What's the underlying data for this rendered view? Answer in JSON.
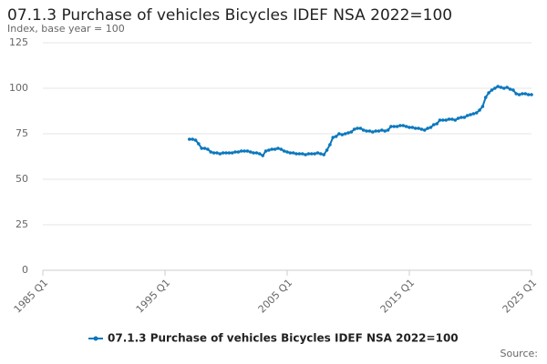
{
  "chart_data": {
    "type": "line",
    "title": "07.1.3 Purchase of vehicles Bicycles IDEF NSA 2022=100",
    "subtitle": "Index, base year = 100",
    "source": "Source:",
    "x": [
      1997,
      1997.25,
      1997.5,
      1997.75,
      1998,
      1998.25,
      1998.5,
      1998.75,
      1999,
      1999.25,
      1999.5,
      1999.75,
      2000,
      2000.25,
      2000.5,
      2000.75,
      2001,
      2001.25,
      2001.5,
      2001.75,
      2002,
      2002.25,
      2002.5,
      2002.75,
      2003,
      2003.25,
      2003.5,
      2003.75,
      2004,
      2004.25,
      2004.5,
      2004.75,
      2005,
      2005.25,
      2005.5,
      2005.75,
      2006,
      2006.25,
      2006.5,
      2006.75,
      2007,
      2007.25,
      2007.5,
      2007.75,
      2008,
      2008.25,
      2008.5,
      2008.75,
      2009,
      2009.25,
      2009.5,
      2009.75,
      2010,
      2010.25,
      2010.5,
      2010.75,
      2011,
      2011.25,
      2011.5,
      2011.75,
      2012,
      2012.25,
      2012.5,
      2012.75,
      2013,
      2013.25,
      2013.5,
      2013.75,
      2014,
      2014.25,
      2014.5,
      2014.75,
      2015,
      2015.25,
      2015.5,
      2015.75,
      2016,
      2016.25,
      2016.5,
      2016.75,
      2017,
      2017.25,
      2017.5,
      2017.75,
      2018,
      2018.25,
      2018.5,
      2018.75,
      2019,
      2019.25,
      2019.5,
      2019.75,
      2020,
      2020.25,
      2020.5,
      2020.75,
      2021,
      2021.25,
      2021.5,
      2021.75,
      2022,
      2022.25,
      2022.5,
      2022.75,
      2023,
      2023.25,
      2023.5,
      2023.75,
      2024,
      2024.25,
      2024.5,
      2024.75,
      2025
    ],
    "series": [
      {
        "name": "07.1.3 Purchase of vehicles Bicycles IDEF NSA 2022=100",
        "color": "#0a77bd",
        "values": [
          72,
          72,
          71.5,
          69.5,
          67,
          67,
          66.5,
          65,
          64.5,
          64.5,
          64,
          64.5,
          64.5,
          64.5,
          64.5,
          65,
          65,
          65.5,
          65.5,
          65.5,
          65,
          64.5,
          64.5,
          64,
          63,
          65.5,
          66,
          66.5,
          66.5,
          67,
          66.5,
          65.5,
          65,
          64.5,
          64.5,
          64,
          64,
          64,
          63.5,
          64,
          64,
          64,
          64.5,
          64,
          63.5,
          66,
          69,
          73,
          73.5,
          75,
          74.5,
          75,
          75.5,
          76,
          77.5,
          78,
          78,
          77,
          76.5,
          76.5,
          76,
          76.5,
          76.5,
          77,
          76.5,
          77,
          79,
          79,
          79,
          79.5,
          79.5,
          79,
          78.5,
          78.5,
          78,
          78,
          77.5,
          77,
          78,
          78.5,
          80,
          80.5,
          82.5,
          82.5,
          82.5,
          83,
          83,
          82.5,
          83.5,
          84,
          84,
          85,
          85.5,
          86,
          86.5,
          88,
          90,
          95,
          97.5,
          99,
          100,
          101,
          100.5,
          100,
          100.5,
          99.5,
          99,
          97,
          96.5,
          97,
          97,
          96.5,
          96.5
        ]
      }
    ],
    "xlim": [
      1985,
      2025
    ],
    "xticks": [
      {
        "value": 1985,
        "label": "1985 Q1"
      },
      {
        "value": 1995,
        "label": "1995 Q1"
      },
      {
        "value": 2005,
        "label": "2005 Q1"
      },
      {
        "value": 2015,
        "label": "2015 Q1"
      },
      {
        "value": 2025,
        "label": "2025 Q1"
      }
    ],
    "ylim": [
      0,
      125
    ],
    "yticks": [
      0,
      25,
      50,
      75,
      100,
      125
    ],
    "grid": true,
    "legend": "bottom"
  }
}
